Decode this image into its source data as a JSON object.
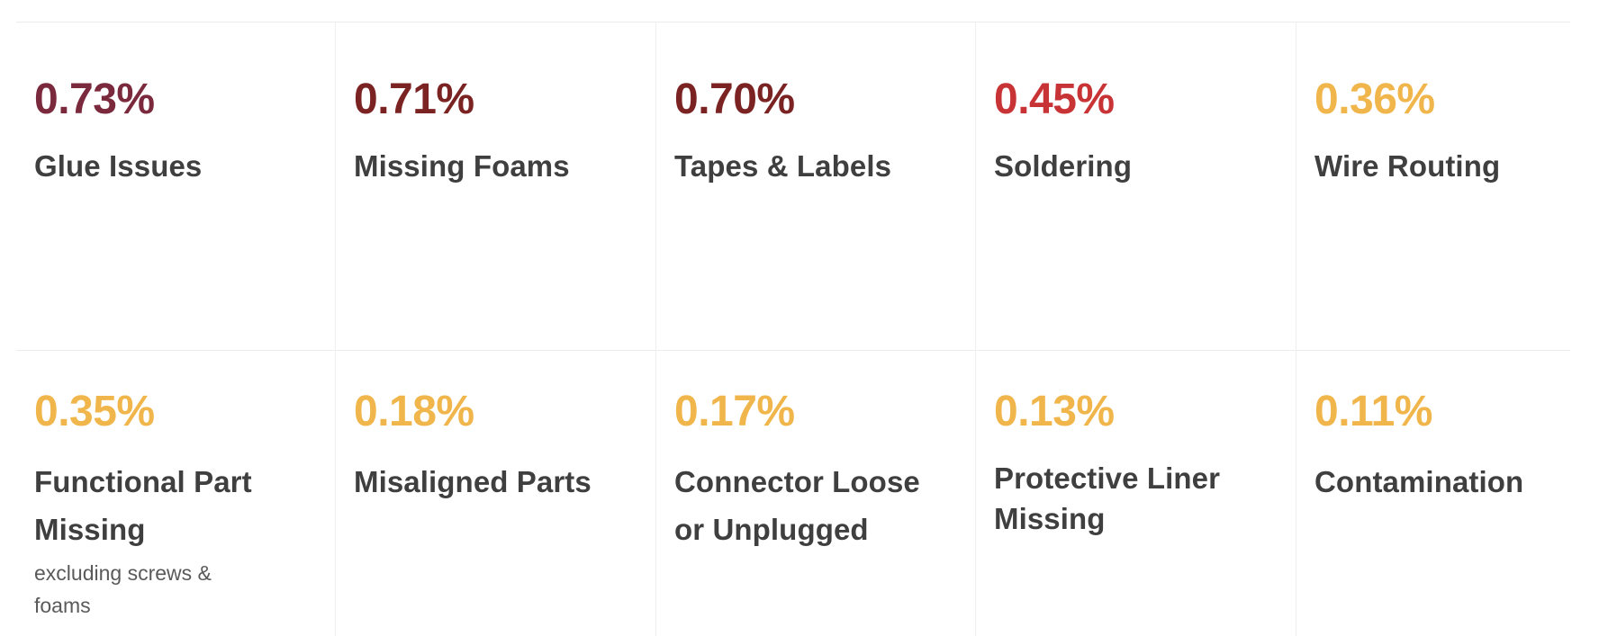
{
  "colors": {
    "deep_maroon": "#7a2a3c",
    "maroon": "#7b2323",
    "red": "#c83436",
    "amber": "#f0b64b",
    "label_text": "#3f3f3f",
    "note_text": "#5a5a5a"
  },
  "metrics": [
    {
      "value": "0.73%",
      "label": "Glue Issues",
      "note": ""
    },
    {
      "value": "0.71%",
      "label": "Missing Foams",
      "note": ""
    },
    {
      "value": "0.70%",
      "label": "Tapes & Labels",
      "note": ""
    },
    {
      "value": "0.45%",
      "label": "Soldering",
      "note": ""
    },
    {
      "value": "0.36%",
      "label": "Wire Routing",
      "note": ""
    },
    {
      "value": "0.35%",
      "label": "Functional Part\nMissing",
      "note": "excluding screws &\nfoams"
    },
    {
      "value": "0.18%",
      "label": "Misaligned Parts",
      "note": ""
    },
    {
      "value": "0.17%",
      "label": "Connector Loose\nor Unplugged",
      "note": ""
    },
    {
      "value": "0.13%",
      "label": "Protective Liner\nMissing",
      "note": ""
    },
    {
      "value": "0.11%",
      "label": "Contamination",
      "note": ""
    }
  ]
}
